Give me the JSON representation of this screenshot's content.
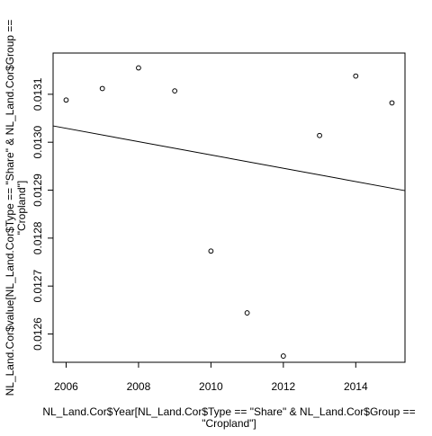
{
  "chart_data": {
    "type": "scatter",
    "xlabel_line1": "NL_Land.Cor$Year[NL_Land.Cor$Type == \"Share\" & NL_Land.Cor$Group ==",
    "xlabel_line2": "\"Cropland\"]",
    "ylabel_line1": "NL_Land.Cor$value[NL_Land.Cor$Type == \"Share\" & NL_Land.Cor$Group ==",
    "ylabel_line2": "\"Cropland\"]",
    "xlim": [
      2005.64,
      2015.36
    ],
    "ylim": [
      0.012541,
      0.013186
    ],
    "x_ticks": [
      2006,
      2008,
      2010,
      2012,
      2014
    ],
    "x_tick_labels": [
      "2006",
      "2008",
      "2010",
      "2012",
      "2014"
    ],
    "y_ticks": [
      0.0126,
      0.0127,
      0.0128,
      0.0129,
      0.013,
      0.0131
    ],
    "y_tick_labels": [
      "0.0126",
      "0.0127",
      "0.0128",
      "0.0129",
      "0.0130",
      "0.0131"
    ],
    "points": [
      {
        "x": 2006,
        "y": 0.013088
      },
      {
        "x": 2007,
        "y": 0.013112
      },
      {
        "x": 2008,
        "y": 0.013155
      },
      {
        "x": 2009,
        "y": 0.013107
      },
      {
        "x": 2010,
        "y": 0.012773
      },
      {
        "x": 2011,
        "y": 0.012644
      },
      {
        "x": 2012,
        "y": 0.012554
      },
      {
        "x": 2013,
        "y": 0.013014
      },
      {
        "x": 2014,
        "y": 0.013138
      },
      {
        "x": 2015,
        "y": 0.013082
      }
    ],
    "trend_line": {
      "x": [
        2005.64,
        2015.36
      ],
      "y": [
        0.013034,
        0.012899
      ]
    },
    "grid": false,
    "legend": "none"
  }
}
